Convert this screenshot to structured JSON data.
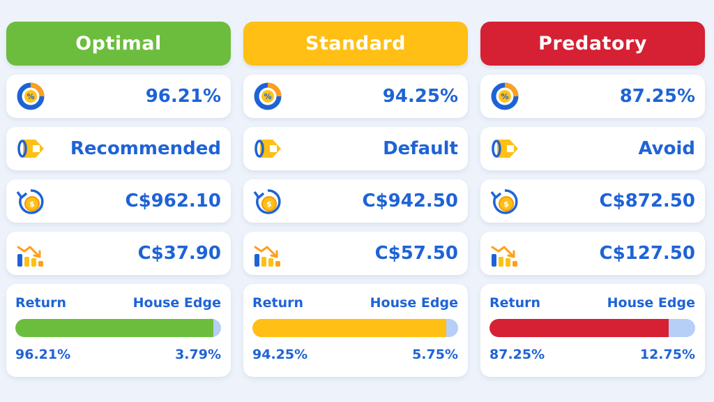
{
  "columns": [
    {
      "title": "Optimal",
      "color": "#6cbd3d",
      "rtp": "96.21%",
      "rating": "Recommended",
      "payback": "C$962.10",
      "loss": "C$37.90",
      "bar": {
        "left_label": "Return",
        "right_label": "House Edge",
        "return_fraction": 0.9621,
        "return_text": "96.21%",
        "edge_text": "3.79%"
      }
    },
    {
      "title": "Standard",
      "color": "#ffbf14",
      "rtp": "94.25%",
      "rating": "Default",
      "payback": "C$942.50",
      "loss": "C$57.50",
      "bar": {
        "left_label": "Return",
        "right_label": "House Edge",
        "return_fraction": 0.9425,
        "return_text": "94.25%",
        "edge_text": "5.75%"
      }
    },
    {
      "title": "Predatory",
      "color": "#d62033",
      "rtp": "87.25%",
      "rating": "Avoid",
      "payback": "C$872.50",
      "loss": "C$127.50",
      "bar": {
        "left_label": "Return",
        "right_label": "House Edge",
        "return_fraction": 0.8725,
        "return_text": "87.25%",
        "edge_text": "12.75%"
      }
    }
  ],
  "icons": {
    "rtp": "percent-donut-icon",
    "rating": "price-tag-icon",
    "payback": "coin-return-icon",
    "loss": "declining-chart-icon"
  }
}
